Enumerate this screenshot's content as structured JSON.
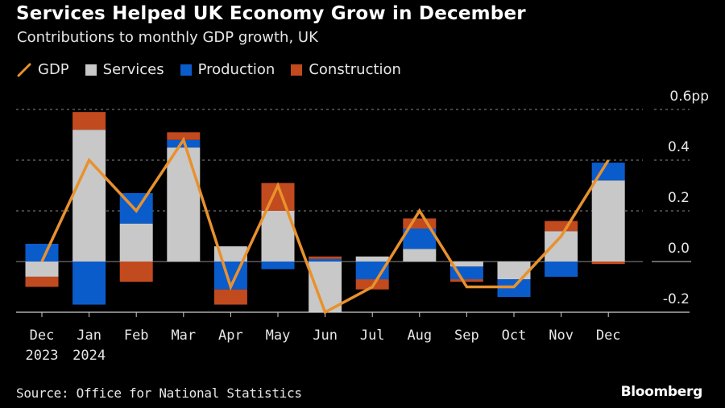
{
  "header": {
    "title": "Services Helped UK Economy Grow in December",
    "subtitle": "Contributions to monthly GDP growth, UK"
  },
  "legend": [
    {
      "name": "GDP",
      "kind": "line",
      "color": "#E8912D"
    },
    {
      "name": "Services",
      "kind": "box",
      "color": "#C8C8C8"
    },
    {
      "name": "Production",
      "kind": "box",
      "color": "#0B5CCB"
    },
    {
      "name": "Construction",
      "kind": "box",
      "color": "#C14A1E"
    }
  ],
  "footer": {
    "source": "Source: Office for National Statistics",
    "brand": "Bloomberg"
  },
  "chart_data": {
    "type": "bar",
    "stacked": true,
    "title": "Services Helped UK Economy Grow in December",
    "subtitle": "Contributions to monthly GDP growth, UK",
    "xlabel": "",
    "ylabel": "",
    "y_unit_suffix": "pp",
    "ylim": [
      -0.2,
      0.6
    ],
    "yticks": [
      {
        "value": 0.6,
        "label": "0.6pp"
      },
      {
        "value": 0.4,
        "label": "0.4"
      },
      {
        "value": 0.2,
        "label": "0.2"
      },
      {
        "value": 0.0,
        "label": "0.0"
      },
      {
        "value": -0.2,
        "label": "-0.2"
      }
    ],
    "grid": true,
    "legend_position": "top-left",
    "y_axis_side": "right",
    "categories": [
      "Dec",
      "Jan",
      "Feb",
      "Mar",
      "Apr",
      "May",
      "Jun",
      "Jul",
      "Aug",
      "Sep",
      "Oct",
      "Nov",
      "Dec"
    ],
    "category_years": [
      "2023",
      "2024",
      "",
      "",
      "",
      "",
      "",
      "",
      "",
      "",
      "",
      "",
      ""
    ],
    "series": [
      {
        "name": "Services",
        "type": "bar",
        "color": "#C8C8C8",
        "values": [
          -0.06,
          0.52,
          0.15,
          0.45,
          0.06,
          0.2,
          -0.2,
          0.02,
          0.05,
          -0.02,
          -0.07,
          0.12,
          0.32
        ]
      },
      {
        "name": "Production",
        "type": "bar",
        "color": "#0B5CCB",
        "values": [
          0.07,
          -0.17,
          0.12,
          0.03,
          -0.11,
          -0.03,
          0.01,
          -0.07,
          0.08,
          -0.05,
          -0.07,
          -0.06,
          0.07
        ]
      },
      {
        "name": "Construction",
        "type": "bar",
        "color": "#C14A1E",
        "values": [
          -0.04,
          0.07,
          -0.08,
          0.03,
          -0.06,
          0.11,
          0.01,
          -0.04,
          0.04,
          -0.01,
          0.0,
          0.04,
          -0.01
        ]
      },
      {
        "name": "GDP",
        "type": "line",
        "color": "#E8912D",
        "values": [
          0.0,
          0.4,
          0.2,
          0.48,
          -0.1,
          0.3,
          -0.2,
          -0.1,
          0.2,
          -0.1,
          -0.1,
          0.1,
          0.4
        ]
      }
    ]
  }
}
